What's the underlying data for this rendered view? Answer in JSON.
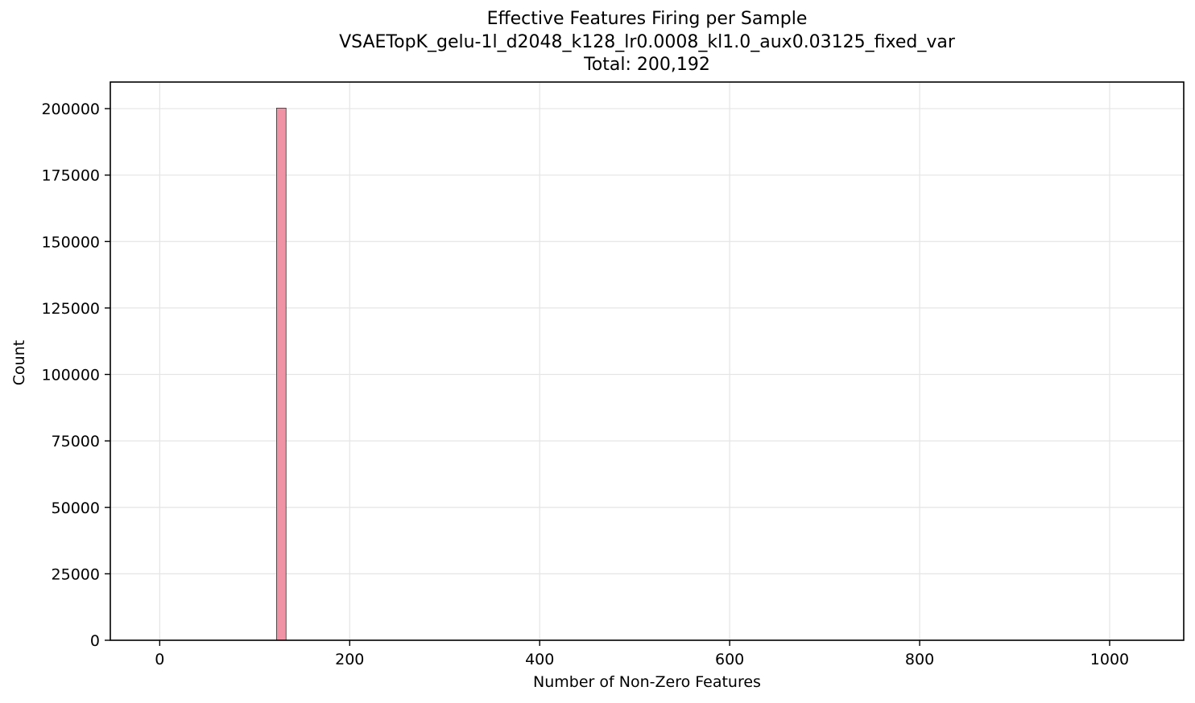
{
  "chart_data": {
    "type": "bar",
    "title_lines": [
      "Effective Features Firing per Sample",
      "VSAETopK_gelu-1l_d2048_k128_lr0.0008_kl1.0_aux0.03125_fixed_var",
      "Total: 200,192"
    ],
    "xlabel": "Number of Non-Zero Features",
    "ylabel": "Count",
    "xlim": [
      -52,
      1078
    ],
    "ylim": [
      0,
      210000
    ],
    "xticks": [
      0,
      200,
      400,
      600,
      800,
      1000
    ],
    "yticks": [
      0,
      25000,
      50000,
      75000,
      100000,
      125000,
      150000,
      175000,
      200000
    ],
    "grid": true,
    "bars": [
      {
        "x_start": 123,
        "x_end": 133,
        "value": 200192
      }
    ],
    "colors": {
      "bar_fill": "#f093a5",
      "bar_edge": "#333333",
      "grid": "#e5e5e5"
    }
  }
}
